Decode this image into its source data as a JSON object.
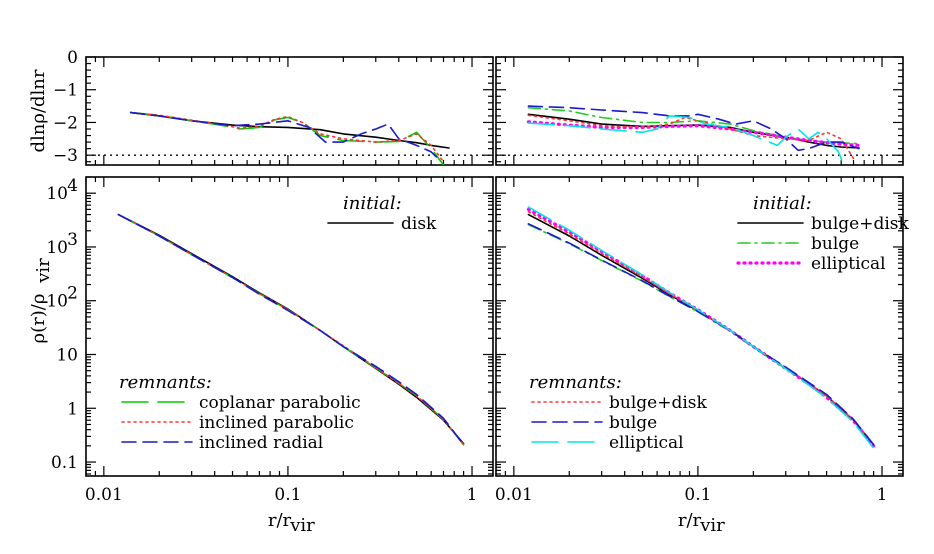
{
  "chart_data": [
    {
      "id": "top-left",
      "type": "line",
      "ylabel": "dlnρ/dlnr",
      "xscale": "log",
      "xlim": [
        0.008,
        1.3
      ],
      "ylim": [
        -3.3,
        0
      ],
      "yticks": [
        {
          "v": 0,
          "t": "0"
        },
        {
          "v": -1,
          "t": "−1"
        },
        {
          "v": -2,
          "t": "−2"
        },
        {
          "v": -3,
          "t": "−3"
        }
      ],
      "reference_line": {
        "y": -3,
        "style": "dotted",
        "color": "#000000"
      },
      "series": [
        {
          "key": "disk",
          "color": "#000000",
          "dash": "solid",
          "x": [
            0.014,
            0.02,
            0.03,
            0.05,
            0.07,
            0.1,
            0.15,
            0.2,
            0.3,
            0.4,
            0.5,
            0.6,
            0.75
          ],
          "y": [
            -1.7,
            -1.8,
            -1.95,
            -2.08,
            -2.13,
            -2.15,
            -2.22,
            -2.35,
            -2.45,
            -2.55,
            -2.62,
            -2.7,
            -2.78
          ]
        },
        {
          "key": "coplanar-parabolic",
          "color": "#00cc00",
          "dash": "long-dash",
          "x": [
            0.014,
            0.02,
            0.03,
            0.045,
            0.055,
            0.07,
            0.085,
            0.1,
            0.12,
            0.15,
            0.2,
            0.3,
            0.4,
            0.5,
            0.6,
            0.7
          ],
          "y": [
            -1.7,
            -1.78,
            -1.95,
            -2.1,
            -2.2,
            -2.15,
            -1.92,
            -1.85,
            -2.0,
            -2.4,
            -2.55,
            -2.6,
            -2.58,
            -2.3,
            -2.8,
            -3.3
          ]
        },
        {
          "key": "inclined-parabolic",
          "color": "#ff3333",
          "dash": "dotted",
          "x": [
            0.014,
            0.02,
            0.03,
            0.045,
            0.055,
            0.07,
            0.085,
            0.1,
            0.12,
            0.15,
            0.2,
            0.3,
            0.4,
            0.5,
            0.6,
            0.7
          ],
          "y": [
            -1.7,
            -1.78,
            -1.93,
            -2.08,
            -2.18,
            -2.12,
            -1.9,
            -1.82,
            -2.0,
            -2.35,
            -2.5,
            -2.6,
            -2.55,
            -2.35,
            -2.7,
            -3.2
          ]
        },
        {
          "key": "inclined-radial",
          "color": "#1a1acc",
          "dash": "dashed",
          "x": [
            0.014,
            0.02,
            0.03,
            0.05,
            0.07,
            0.1,
            0.13,
            0.16,
            0.2,
            0.25,
            0.3,
            0.35,
            0.4,
            0.5,
            0.6,
            0.68
          ],
          "y": [
            -1.7,
            -1.8,
            -1.95,
            -2.1,
            -2.05,
            -1.95,
            -2.15,
            -2.6,
            -2.6,
            -2.35,
            -2.2,
            -2.05,
            -2.5,
            -2.7,
            -2.9,
            -3.2
          ]
        }
      ]
    },
    {
      "id": "top-right",
      "type": "line",
      "xscale": "log",
      "xlim": [
        0.008,
        1.3
      ],
      "ylim": [
        -3.3,
        0
      ],
      "reference_line": {
        "y": -3,
        "style": "dotted",
        "color": "#000000"
      },
      "series": [
        {
          "key": "init-bulge-disk",
          "color": "#000000",
          "dash": "solid",
          "x": [
            0.012,
            0.02,
            0.03,
            0.05,
            0.07,
            0.1,
            0.15,
            0.2,
            0.3,
            0.4,
            0.5,
            0.6,
            0.75
          ],
          "y": [
            -1.75,
            -1.9,
            -2.05,
            -2.12,
            -2.1,
            -2.08,
            -2.15,
            -2.3,
            -2.45,
            -2.6,
            -2.7,
            -2.75,
            -2.78
          ]
        },
        {
          "key": "init-bulge",
          "color": "#22cc22",
          "dash": "dash-dot",
          "x": [
            0.012,
            0.02,
            0.03,
            0.05,
            0.07,
            0.1,
            0.15,
            0.2,
            0.3,
            0.4,
            0.5,
            0.6,
            0.75
          ],
          "y": [
            -1.55,
            -1.65,
            -1.85,
            -2.0,
            -2.0,
            -1.95,
            -2.05,
            -2.25,
            -2.45,
            -2.55,
            -2.6,
            -2.62,
            -2.65
          ]
        },
        {
          "key": "init-elliptical",
          "color": "#ff00ff",
          "dash": "dotted-thick",
          "x": [
            0.012,
            0.02,
            0.03,
            0.05,
            0.07,
            0.1,
            0.15,
            0.2,
            0.3,
            0.4,
            0.5,
            0.6,
            0.75
          ],
          "y": [
            -1.98,
            -2.08,
            -2.15,
            -2.15,
            -2.12,
            -2.1,
            -2.2,
            -2.3,
            -2.45,
            -2.55,
            -2.62,
            -2.66,
            -2.7
          ]
        },
        {
          "key": "rem-bulge-disk",
          "color": "#ff3333",
          "dash": "dotted",
          "x": [
            0.012,
            0.02,
            0.03,
            0.05,
            0.07,
            0.085,
            0.1,
            0.15,
            0.2,
            0.3,
            0.4,
            0.5,
            0.6,
            0.7
          ],
          "y": [
            -1.78,
            -1.95,
            -2.1,
            -2.15,
            -2.05,
            -1.85,
            -1.95,
            -2.2,
            -2.4,
            -2.5,
            -2.55,
            -2.3,
            -2.5,
            -3.1
          ]
        },
        {
          "key": "rem-bulge",
          "color": "#1a1acc",
          "dash": "dashed",
          "x": [
            0.012,
            0.02,
            0.03,
            0.05,
            0.07,
            0.09,
            0.1,
            0.13,
            0.16,
            0.2,
            0.25,
            0.3,
            0.35,
            0.4,
            0.5,
            0.6,
            0.75
          ],
          "y": [
            -1.5,
            -1.55,
            -1.62,
            -1.7,
            -1.8,
            -1.8,
            -1.75,
            -1.9,
            -2.05,
            -1.95,
            -2.2,
            -2.5,
            -2.85,
            -2.8,
            -2.6,
            -2.6,
            -2.8
          ]
        },
        {
          "key": "rem-elliptical",
          "color": "#00e5e5",
          "dash": "long-dash",
          "x": [
            0.012,
            0.02,
            0.03,
            0.05,
            0.06,
            0.07,
            0.09,
            0.11,
            0.15,
            0.2,
            0.27,
            0.3,
            0.35,
            0.4,
            0.45,
            0.5,
            0.58,
            0.62
          ],
          "y": [
            -2.02,
            -2.1,
            -2.2,
            -2.3,
            -2.2,
            -1.8,
            -1.85,
            -2.05,
            -2.15,
            -2.4,
            -2.7,
            -2.45,
            -2.2,
            -2.5,
            -2.3,
            -2.5,
            -2.9,
            -3.3
          ]
        }
      ]
    },
    {
      "id": "bottom-left",
      "type": "line",
      "ylabel": "ρ(r)/ρ",
      "ylabel_sub": "vir",
      "xlabel": "r/r",
      "xlabel_sub": "vir",
      "xscale": "log",
      "yscale": "log",
      "xlim": [
        0.008,
        1.3
      ],
      "ylim": [
        0.055,
        20000
      ],
      "xticks": [
        {
          "v": 0.01,
          "t": "0.01"
        },
        {
          "v": 0.1,
          "t": "0.1"
        },
        {
          "v": 1,
          "t": "1"
        }
      ],
      "yticks": [
        {
          "v": 0.1,
          "t": "0.1"
        },
        {
          "v": 1,
          "t": "1"
        },
        {
          "v": 10,
          "t": "10"
        },
        {
          "v": 100,
          "t": "10",
          "sup": "2"
        },
        {
          "v": 1000,
          "t": "10",
          "sup": "3"
        },
        {
          "v": 10000,
          "t": "10",
          "sup": "4"
        }
      ],
      "legend_initial": {
        "title": "initial:",
        "position": "top-right",
        "entries": [
          {
            "label": "disk",
            "color": "#000000",
            "dash": "solid"
          }
        ]
      },
      "legend_remnants": {
        "title": "remnants:",
        "position": "bottom-left",
        "entries": [
          {
            "label": "coplanar parabolic",
            "color": "#00cc00",
            "dash": "long-dash"
          },
          {
            "label": "inclined parabolic",
            "color": "#ff3333",
            "dash": "dotted"
          },
          {
            "label": "inclined radial",
            "color": "#1a1acc",
            "dash": "dashed"
          }
        ]
      },
      "series": [
        {
          "key": "disk",
          "color": "#000000",
          "dash": "solid",
          "x": [
            0.012,
            0.02,
            0.03,
            0.05,
            0.07,
            0.1,
            0.15,
            0.2,
            0.3,
            0.4,
            0.5,
            0.7,
            0.9
          ],
          "y": [
            4000,
            1650,
            750,
            280,
            140,
            70,
            28,
            14,
            5.5,
            2.8,
            1.6,
            0.6,
            0.22
          ]
        },
        {
          "key": "coplanar-parabolic",
          "color": "#00cc00",
          "dash": "long-dash",
          "x": [
            0.012,
            0.02,
            0.03,
            0.05,
            0.07,
            0.1,
            0.15,
            0.2,
            0.3,
            0.4,
            0.5,
            0.7,
            0.9
          ],
          "y": [
            4000,
            1600,
            720,
            270,
            135,
            68,
            28,
            14,
            5.6,
            2.9,
            1.7,
            0.62,
            0.21
          ]
        },
        {
          "key": "inclined-parabolic",
          "color": "#ff3333",
          "dash": "dotted",
          "x": [
            0.012,
            0.02,
            0.03,
            0.05,
            0.07,
            0.1,
            0.15,
            0.2,
            0.3,
            0.4,
            0.5,
            0.7,
            0.9
          ],
          "y": [
            4000,
            1600,
            720,
            270,
            135,
            68,
            28,
            14.5,
            5.7,
            2.9,
            1.7,
            0.62,
            0.21
          ]
        },
        {
          "key": "inclined-radial",
          "color": "#1a1acc",
          "dash": "dashed",
          "x": [
            0.012,
            0.02,
            0.03,
            0.05,
            0.07,
            0.1,
            0.15,
            0.2,
            0.3,
            0.4,
            0.5,
            0.7,
            0.9
          ],
          "y": [
            4000,
            1600,
            720,
            270,
            132,
            66,
            28,
            14,
            6.0,
            3.1,
            1.8,
            0.65,
            0.21
          ]
        }
      ]
    },
    {
      "id": "bottom-right",
      "type": "line",
      "xlabel": "r/r",
      "xlabel_sub": "vir",
      "xscale": "log",
      "yscale": "log",
      "xlim": [
        0.008,
        1.3
      ],
      "ylim": [
        0.055,
        20000
      ],
      "xticks": [
        {
          "v": 0.01,
          "t": "0.01"
        },
        {
          "v": 0.1,
          "t": "0.1"
        },
        {
          "v": 1,
          "t": "1"
        }
      ],
      "legend_initial": {
        "title": "initial:",
        "position": "top-right",
        "entries": [
          {
            "label": "bulge+disk",
            "color": "#000000",
            "dash": "solid"
          },
          {
            "label": "bulge",
            "color": "#22cc22",
            "dash": "dash-dot"
          },
          {
            "label": "elliptical",
            "color": "#ff00ff",
            "dash": "dotted-thick"
          }
        ]
      },
      "legend_remnants": {
        "title": "remnants:",
        "position": "bottom-left",
        "entries": [
          {
            "label": "bulge+disk",
            "color": "#ff3333",
            "dash": "dotted"
          },
          {
            "label": "bulge",
            "color": "#1a1acc",
            "dash": "dashed"
          },
          {
            "label": "elliptical",
            "color": "#00e5e5",
            "dash": "long-dash"
          }
        ]
      },
      "series": [
        {
          "key": "init-bulge-disk",
          "color": "#000000",
          "dash": "solid",
          "x": [
            0.012,
            0.02,
            0.03,
            0.05,
            0.07,
            0.1,
            0.15,
            0.2,
            0.3,
            0.4,
            0.5,
            0.7,
            0.9
          ],
          "y": [
            4000,
            1600,
            700,
            260,
            130,
            65,
            28,
            14,
            5.5,
            2.9,
            1.7,
            0.6,
            0.21
          ]
        },
        {
          "key": "init-bulge",
          "color": "#22cc22",
          "dash": "dash-dot",
          "x": [
            0.012,
            0.02,
            0.03,
            0.05,
            0.07,
            0.1,
            0.15,
            0.2,
            0.3,
            0.4,
            0.5,
            0.7,
            0.9
          ],
          "y": [
            2600,
            1150,
            560,
            230,
            120,
            62,
            27,
            13.5,
            5.5,
            2.9,
            1.7,
            0.62,
            0.21
          ]
        },
        {
          "key": "init-elliptical",
          "color": "#ff00ff",
          "dash": "dotted-thick",
          "x": [
            0.012,
            0.02,
            0.03,
            0.05,
            0.07,
            0.1,
            0.15,
            0.2,
            0.3,
            0.4,
            0.5,
            0.7,
            0.9
          ],
          "y": [
            5000,
            1900,
            820,
            290,
            140,
            68,
            28,
            14,
            5.5,
            2.8,
            1.6,
            0.58,
            0.2
          ]
        },
        {
          "key": "rem-bulge-disk",
          "color": "#ff3333",
          "dash": "dotted",
          "x": [
            0.012,
            0.02,
            0.03,
            0.05,
            0.07,
            0.1,
            0.15,
            0.2,
            0.3,
            0.4,
            0.5,
            0.7,
            0.9
          ],
          "y": [
            4500,
            1750,
            760,
            275,
            135,
            66,
            28,
            14,
            5.6,
            2.9,
            1.7,
            0.6,
            0.21
          ]
        },
        {
          "key": "rem-bulge",
          "color": "#1a1acc",
          "dash": "dashed",
          "x": [
            0.012,
            0.02,
            0.03,
            0.05,
            0.07,
            0.1,
            0.15,
            0.2,
            0.3,
            0.4,
            0.5,
            0.7,
            0.9
          ],
          "y": [
            2700,
            1180,
            570,
            235,
            122,
            63,
            28,
            14,
            5.8,
            3.0,
            1.8,
            0.62,
            0.21
          ]
        },
        {
          "key": "rem-elliptical",
          "color": "#00e5e5",
          "dash": "long-dash",
          "x": [
            0.012,
            0.02,
            0.03,
            0.05,
            0.07,
            0.1,
            0.15,
            0.2,
            0.3,
            0.4,
            0.5,
            0.7,
            0.9
          ],
          "y": [
            5500,
            2050,
            860,
            300,
            142,
            68,
            28,
            14,
            5.4,
            2.7,
            1.55,
            0.55,
            0.18
          ]
        }
      ]
    }
  ]
}
